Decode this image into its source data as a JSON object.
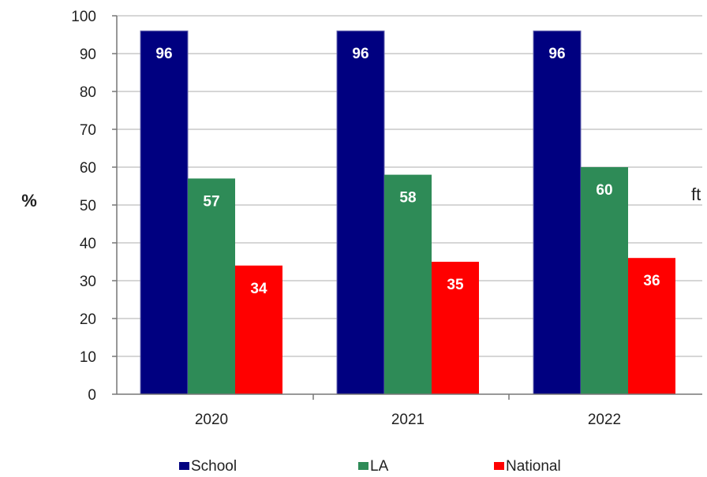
{
  "chart_data": {
    "type": "bar",
    "categories": [
      "2020",
      "2021",
      "2022"
    ],
    "series": [
      {
        "name": "School",
        "values": [
          96,
          96,
          96
        ],
        "color": "#000080"
      },
      {
        "name": "LA",
        "values": [
          57,
          58,
          60
        ],
        "color": "#2E8B57"
      },
      {
        "name": "National",
        "values": [
          34,
          35,
          36
        ],
        "color": "#FF0000"
      }
    ],
    "ylabel": "%",
    "ylim": [
      0,
      100
    ],
    "yticks": [
      0,
      10,
      20,
      30,
      40,
      50,
      60,
      70,
      80,
      90,
      100
    ],
    "grid": true,
    "legend": "bottom",
    "data_labels": true,
    "edge_fragment": "ft"
  }
}
